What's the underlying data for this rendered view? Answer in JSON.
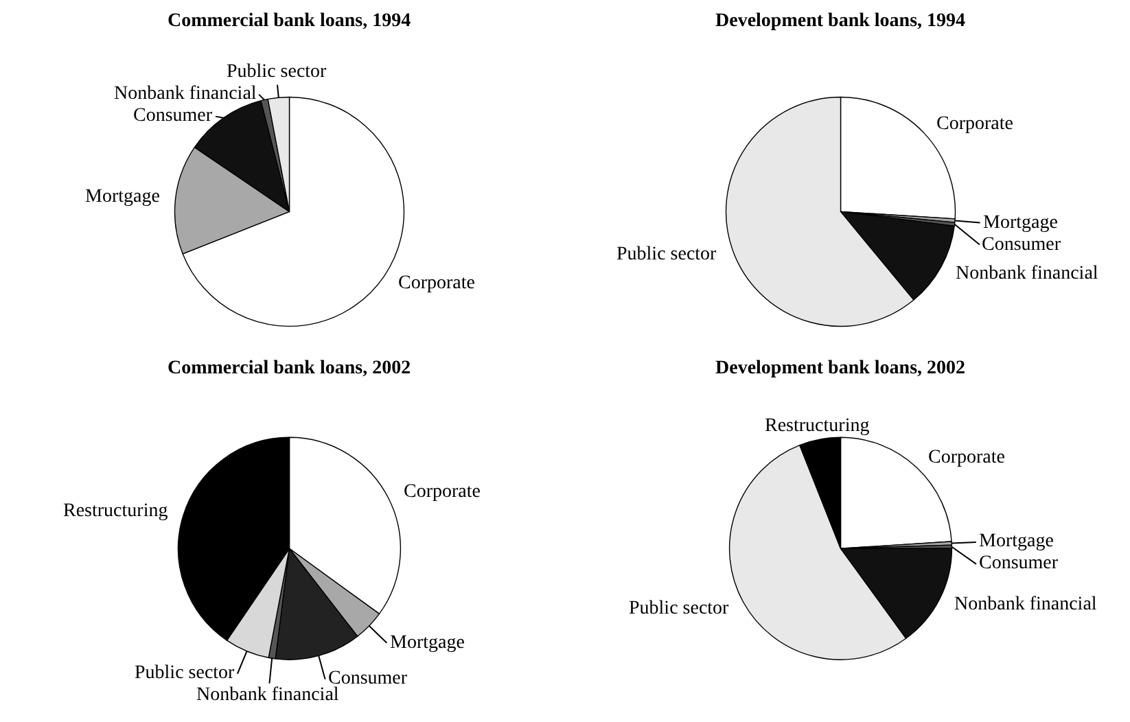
{
  "chart_data": [
    {
      "type": "pie",
      "title": "Commercial bank loans, 1994",
      "categories": [
        "Corporate",
        "Mortgage",
        "Consumer",
        "Nonbank financial",
        "Public sector"
      ],
      "values": [
        69,
        15.5,
        11.5,
        1,
        3
      ],
      "colors": [
        "#ffffff",
        "#a8a8a8",
        "#111111",
        "#555555",
        "#e8e8e8"
      ]
    },
    {
      "type": "pie",
      "title": "Development bank loans, 1994",
      "categories": [
        "Corporate",
        "Mortgage",
        "Consumer",
        "Nonbank financial",
        "Public sector"
      ],
      "values": [
        26,
        0.5,
        0.5,
        12,
        61
      ],
      "colors": [
        "#ffffff",
        "#a8a8a8",
        "#555555",
        "#111111",
        "#e8e8e8"
      ]
    },
    {
      "type": "pie",
      "title": "Commercial bank loans, 2002",
      "categories": [
        "Corporate",
        "Mortgage",
        "Consumer",
        "Nonbank financial",
        "Public sector",
        "Restructuring"
      ],
      "values": [
        35,
        4.5,
        12.5,
        1,
        6.5,
        40.5
      ],
      "colors": [
        "#ffffff",
        "#a8a8a8",
        "#222222",
        "#555555",
        "#d8d8d8",
        "#000000"
      ]
    },
    {
      "type": "pie",
      "title": "Development bank loans, 2002",
      "categories": [
        "Corporate",
        "Mortgage",
        "Consumer",
        "Nonbank financial",
        "Public sector",
        "Restructuring"
      ],
      "values": [
        24,
        0.5,
        0.5,
        15,
        54,
        6
      ],
      "colors": [
        "#ffffff",
        "#a8a8a8",
        "#555555",
        "#111111",
        "#e8e8e8",
        "#000000"
      ]
    }
  ]
}
